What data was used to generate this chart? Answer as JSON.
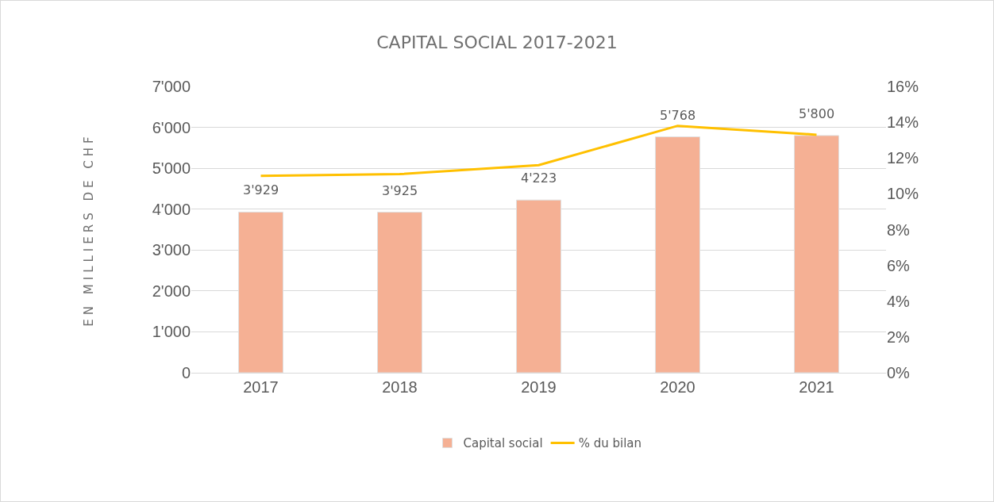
{
  "chart_data": {
    "type": "bar",
    "title": "CAPITAL SOCIAL 2017-2021",
    "ylabel": "EN MILLIERS DE CHF",
    "categories": [
      "2017",
      "2018",
      "2019",
      "2020",
      "2021"
    ],
    "series": [
      {
        "name": "Capital social",
        "color": "#f5b094",
        "values": [
          3929,
          3925,
          4223,
          5768,
          5800
        ],
        "value_labels": [
          "3'929",
          "3'925",
          "4'223",
          "5'768",
          "5'800"
        ]
      },
      {
        "name": "% du bilan",
        "type": "line",
        "axis": "y2",
        "color": "#ffc000",
        "values": [
          11.0,
          11.1,
          11.6,
          13.8,
          13.3
        ]
      }
    ],
    "ylim": [
      0,
      7000
    ],
    "yticks": [
      {
        "value": 0,
        "label": "0"
      },
      {
        "value": 1000,
        "label": "1'000"
      },
      {
        "value": 2000,
        "label": "2'000"
      },
      {
        "value": 3000,
        "label": "3'000"
      },
      {
        "value": 4000,
        "label": "4'000"
      },
      {
        "value": 5000,
        "label": "5'000"
      },
      {
        "value": 6000,
        "label": "6'000"
      },
      {
        "value": 7000,
        "label": "7'000"
      }
    ],
    "y2lim": [
      0,
      16
    ],
    "y2ticks": [
      {
        "value": 0,
        "label": "0%"
      },
      {
        "value": 2,
        "label": "2%"
      },
      {
        "value": 4,
        "label": "4%"
      },
      {
        "value": 6,
        "label": "6%"
      },
      {
        "value": 8,
        "label": "8%"
      },
      {
        "value": 10,
        "label": "10%"
      },
      {
        "value": 12,
        "label": "12%"
      },
      {
        "value": 14,
        "label": "14%"
      },
      {
        "value": 16,
        "label": "16%"
      }
    ],
    "grid": "y",
    "legend": "bottom",
    "marker": "none",
    "line_style": "solid"
  }
}
